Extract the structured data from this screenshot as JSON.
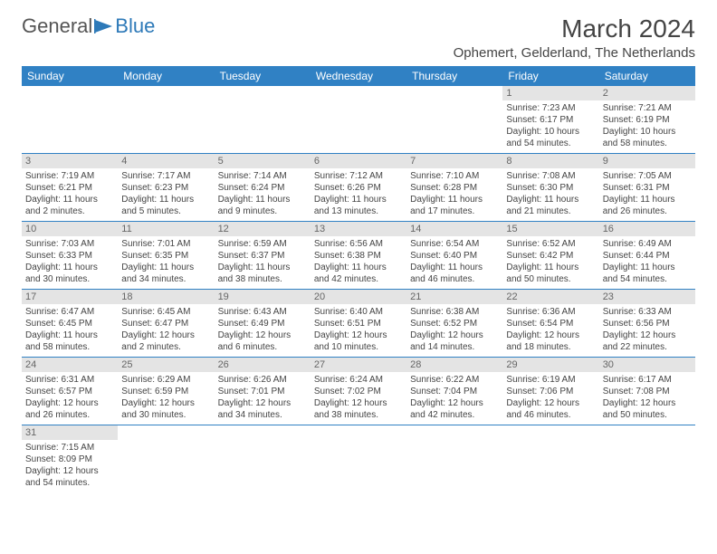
{
  "logo": {
    "text1": "General",
    "text2": "Blue"
  },
  "title": "March 2024",
  "location": "Ophemert, Gelderland, The Netherlands",
  "colors": {
    "header_bg": "#3081c4",
    "header_text": "#ffffff",
    "daynum_bg": "#e4e4e4",
    "daynum_text": "#666666",
    "border": "#3081c4",
    "body_text": "#444444"
  },
  "weekdays": [
    "Sunday",
    "Monday",
    "Tuesday",
    "Wednesday",
    "Thursday",
    "Friday",
    "Saturday"
  ],
  "weeks": [
    [
      null,
      null,
      null,
      null,
      null,
      {
        "n": "1",
        "sr": "Sunrise: 7:23 AM",
        "ss": "Sunset: 6:17 PM",
        "dl1": "Daylight: 10 hours",
        "dl2": "and 54 minutes."
      },
      {
        "n": "2",
        "sr": "Sunrise: 7:21 AM",
        "ss": "Sunset: 6:19 PM",
        "dl1": "Daylight: 10 hours",
        "dl2": "and 58 minutes."
      }
    ],
    [
      {
        "n": "3",
        "sr": "Sunrise: 7:19 AM",
        "ss": "Sunset: 6:21 PM",
        "dl1": "Daylight: 11 hours",
        "dl2": "and 2 minutes."
      },
      {
        "n": "4",
        "sr": "Sunrise: 7:17 AM",
        "ss": "Sunset: 6:23 PM",
        "dl1": "Daylight: 11 hours",
        "dl2": "and 5 minutes."
      },
      {
        "n": "5",
        "sr": "Sunrise: 7:14 AM",
        "ss": "Sunset: 6:24 PM",
        "dl1": "Daylight: 11 hours",
        "dl2": "and 9 minutes."
      },
      {
        "n": "6",
        "sr": "Sunrise: 7:12 AM",
        "ss": "Sunset: 6:26 PM",
        "dl1": "Daylight: 11 hours",
        "dl2": "and 13 minutes."
      },
      {
        "n": "7",
        "sr": "Sunrise: 7:10 AM",
        "ss": "Sunset: 6:28 PM",
        "dl1": "Daylight: 11 hours",
        "dl2": "and 17 minutes."
      },
      {
        "n": "8",
        "sr": "Sunrise: 7:08 AM",
        "ss": "Sunset: 6:30 PM",
        "dl1": "Daylight: 11 hours",
        "dl2": "and 21 minutes."
      },
      {
        "n": "9",
        "sr": "Sunrise: 7:05 AM",
        "ss": "Sunset: 6:31 PM",
        "dl1": "Daylight: 11 hours",
        "dl2": "and 26 minutes."
      }
    ],
    [
      {
        "n": "10",
        "sr": "Sunrise: 7:03 AM",
        "ss": "Sunset: 6:33 PM",
        "dl1": "Daylight: 11 hours",
        "dl2": "and 30 minutes."
      },
      {
        "n": "11",
        "sr": "Sunrise: 7:01 AM",
        "ss": "Sunset: 6:35 PM",
        "dl1": "Daylight: 11 hours",
        "dl2": "and 34 minutes."
      },
      {
        "n": "12",
        "sr": "Sunrise: 6:59 AM",
        "ss": "Sunset: 6:37 PM",
        "dl1": "Daylight: 11 hours",
        "dl2": "and 38 minutes."
      },
      {
        "n": "13",
        "sr": "Sunrise: 6:56 AM",
        "ss": "Sunset: 6:38 PM",
        "dl1": "Daylight: 11 hours",
        "dl2": "and 42 minutes."
      },
      {
        "n": "14",
        "sr": "Sunrise: 6:54 AM",
        "ss": "Sunset: 6:40 PM",
        "dl1": "Daylight: 11 hours",
        "dl2": "and 46 minutes."
      },
      {
        "n": "15",
        "sr": "Sunrise: 6:52 AM",
        "ss": "Sunset: 6:42 PM",
        "dl1": "Daylight: 11 hours",
        "dl2": "and 50 minutes."
      },
      {
        "n": "16",
        "sr": "Sunrise: 6:49 AM",
        "ss": "Sunset: 6:44 PM",
        "dl1": "Daylight: 11 hours",
        "dl2": "and 54 minutes."
      }
    ],
    [
      {
        "n": "17",
        "sr": "Sunrise: 6:47 AM",
        "ss": "Sunset: 6:45 PM",
        "dl1": "Daylight: 11 hours",
        "dl2": "and 58 minutes."
      },
      {
        "n": "18",
        "sr": "Sunrise: 6:45 AM",
        "ss": "Sunset: 6:47 PM",
        "dl1": "Daylight: 12 hours",
        "dl2": "and 2 minutes."
      },
      {
        "n": "19",
        "sr": "Sunrise: 6:43 AM",
        "ss": "Sunset: 6:49 PM",
        "dl1": "Daylight: 12 hours",
        "dl2": "and 6 minutes."
      },
      {
        "n": "20",
        "sr": "Sunrise: 6:40 AM",
        "ss": "Sunset: 6:51 PM",
        "dl1": "Daylight: 12 hours",
        "dl2": "and 10 minutes."
      },
      {
        "n": "21",
        "sr": "Sunrise: 6:38 AM",
        "ss": "Sunset: 6:52 PM",
        "dl1": "Daylight: 12 hours",
        "dl2": "and 14 minutes."
      },
      {
        "n": "22",
        "sr": "Sunrise: 6:36 AM",
        "ss": "Sunset: 6:54 PM",
        "dl1": "Daylight: 12 hours",
        "dl2": "and 18 minutes."
      },
      {
        "n": "23",
        "sr": "Sunrise: 6:33 AM",
        "ss": "Sunset: 6:56 PM",
        "dl1": "Daylight: 12 hours",
        "dl2": "and 22 minutes."
      }
    ],
    [
      {
        "n": "24",
        "sr": "Sunrise: 6:31 AM",
        "ss": "Sunset: 6:57 PM",
        "dl1": "Daylight: 12 hours",
        "dl2": "and 26 minutes."
      },
      {
        "n": "25",
        "sr": "Sunrise: 6:29 AM",
        "ss": "Sunset: 6:59 PM",
        "dl1": "Daylight: 12 hours",
        "dl2": "and 30 minutes."
      },
      {
        "n": "26",
        "sr": "Sunrise: 6:26 AM",
        "ss": "Sunset: 7:01 PM",
        "dl1": "Daylight: 12 hours",
        "dl2": "and 34 minutes."
      },
      {
        "n": "27",
        "sr": "Sunrise: 6:24 AM",
        "ss": "Sunset: 7:02 PM",
        "dl1": "Daylight: 12 hours",
        "dl2": "and 38 minutes."
      },
      {
        "n": "28",
        "sr": "Sunrise: 6:22 AM",
        "ss": "Sunset: 7:04 PM",
        "dl1": "Daylight: 12 hours",
        "dl2": "and 42 minutes."
      },
      {
        "n": "29",
        "sr": "Sunrise: 6:19 AM",
        "ss": "Sunset: 7:06 PM",
        "dl1": "Daylight: 12 hours",
        "dl2": "and 46 minutes."
      },
      {
        "n": "30",
        "sr": "Sunrise: 6:17 AM",
        "ss": "Sunset: 7:08 PM",
        "dl1": "Daylight: 12 hours",
        "dl2": "and 50 minutes."
      }
    ],
    [
      {
        "n": "31",
        "sr": "Sunrise: 7:15 AM",
        "ss": "Sunset: 8:09 PM",
        "dl1": "Daylight: 12 hours",
        "dl2": "and 54 minutes."
      },
      null,
      null,
      null,
      null,
      null,
      null
    ]
  ]
}
